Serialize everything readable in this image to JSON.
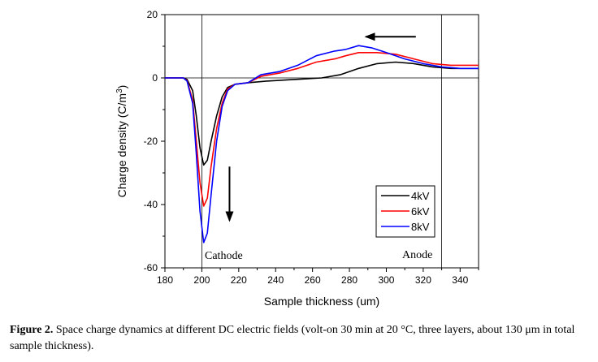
{
  "chart_data": {
    "type": "line",
    "xlabel": "Sample thickness (um)",
    "ylabel_main": "Charge density (C/m",
    "ylabel_sup": "3",
    "ylabel_close": ")",
    "xlim": [
      180,
      350
    ],
    "ylim": [
      -60,
      20
    ],
    "xticks": [
      180,
      200,
      220,
      240,
      260,
      280,
      300,
      320,
      340
    ],
    "yticks": [
      -60,
      -40,
      -20,
      0,
      20
    ],
    "grid": false,
    "legend_position": "bottom-right",
    "annotations": {
      "cathode": "Cathode",
      "anode": "Anode"
    },
    "reference_lines": {
      "cathode_x": 200,
      "anode_x": 330,
      "zero_y": 0
    },
    "arrows": [
      {
        "from": [
          215,
          -28
        ],
        "to": [
          215,
          -45
        ],
        "meaning": "down"
      },
      {
        "from": [
          316,
          13
        ],
        "to": [
          289,
          13
        ],
        "meaning": "left"
      }
    ],
    "series": [
      {
        "name": "4kV",
        "color": "#000000",
        "points": [
          [
            180,
            0
          ],
          [
            190,
            0
          ],
          [
            192,
            -0.5
          ],
          [
            195,
            -4
          ],
          [
            197,
            -12
          ],
          [
            199,
            -22
          ],
          [
            201,
            -27.5
          ],
          [
            203,
            -26
          ],
          [
            205,
            -20
          ],
          [
            208,
            -12
          ],
          [
            211,
            -6
          ],
          [
            214,
            -3
          ],
          [
            218,
            -2
          ],
          [
            225,
            -1.5
          ],
          [
            235,
            -1
          ],
          [
            250,
            -0.5
          ],
          [
            265,
            0
          ],
          [
            275,
            1
          ],
          [
            285,
            3
          ],
          [
            295,
            4.5
          ],
          [
            305,
            5
          ],
          [
            315,
            4.5
          ],
          [
            325,
            3.5
          ],
          [
            335,
            3
          ],
          [
            350,
            3
          ]
        ]
      },
      {
        "name": "6kV",
        "color": "#ff0000",
        "points": [
          [
            180,
            0
          ],
          [
            190,
            0
          ],
          [
            192,
            -0.8
          ],
          [
            195,
            -7
          ],
          [
            197,
            -20
          ],
          [
            199,
            -33
          ],
          [
            201,
            -40.5
          ],
          [
            203,
            -38
          ],
          [
            205,
            -28
          ],
          [
            208,
            -16
          ],
          [
            211,
            -8
          ],
          [
            214,
            -3.5
          ],
          [
            218,
            -2
          ],
          [
            225,
            -1.5
          ],
          [
            232,
            0.5
          ],
          [
            242,
            1.5
          ],
          [
            252,
            3
          ],
          [
            262,
            5
          ],
          [
            272,
            6
          ],
          [
            278,
            7
          ],
          [
            285,
            8
          ],
          [
            295,
            8
          ],
          [
            305,
            7.5
          ],
          [
            315,
            6
          ],
          [
            325,
            4.5
          ],
          [
            335,
            4
          ],
          [
            350,
            4
          ]
        ]
      },
      {
        "name": "8kV",
        "color": "#0000ff",
        "points": [
          [
            180,
            0
          ],
          [
            190,
            0
          ],
          [
            192,
            -1
          ],
          [
            195,
            -8
          ],
          [
            197,
            -24
          ],
          [
            199,
            -42
          ],
          [
            201,
            -52
          ],
          [
            203,
            -49
          ],
          [
            205,
            -37
          ],
          [
            208,
            -20
          ],
          [
            211,
            -9
          ],
          [
            214,
            -4
          ],
          [
            218,
            -2
          ],
          [
            225,
            -1.5
          ],
          [
            232,
            1
          ],
          [
            242,
            2
          ],
          [
            252,
            4
          ],
          [
            262,
            7
          ],
          [
            272,
            8.5
          ],
          [
            278,
            9
          ],
          [
            285,
            10.2
          ],
          [
            292,
            9.5
          ],
          [
            300,
            8
          ],
          [
            310,
            6
          ],
          [
            320,
            4.5
          ],
          [
            330,
            3.5
          ],
          [
            340,
            3
          ],
          [
            350,
            3
          ]
        ]
      }
    ]
  },
  "caption": {
    "label": "Figure 2.",
    "text": " Space charge dynamics at different DC electric fields (volt-on 30 min at 20 °C, three layers, about 130 μm in total sample thickness)."
  }
}
